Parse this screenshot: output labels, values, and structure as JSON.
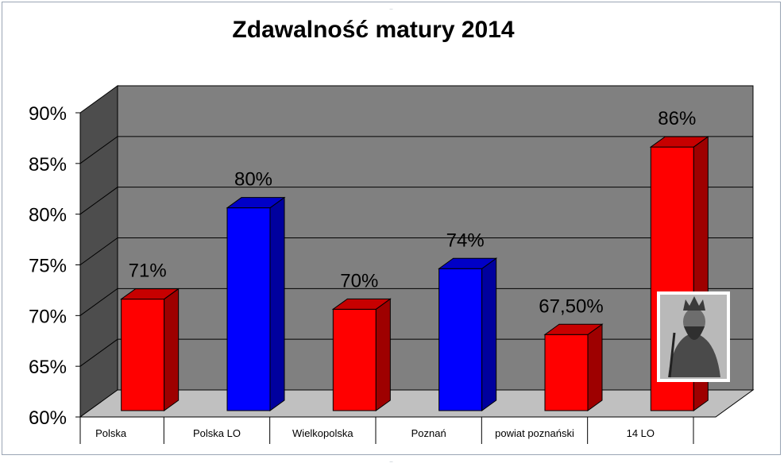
{
  "chart_data": {
    "type": "bar",
    "title": "Zdawalność matury 2014",
    "categories": [
      "Polska",
      "Polska LO",
      "Wielkopolska",
      "Poznań",
      "powiat poznański",
      "14 LO"
    ],
    "values": [
      71,
      80,
      70,
      74,
      67.5,
      86
    ],
    "data_labels": [
      "71%",
      "80%",
      "70%",
      "74%",
      "67,50%",
      "86%"
    ],
    "bar_colors": [
      "#ff0000",
      "#0000ff",
      "#ff0000",
      "#0000ff",
      "#ff0000",
      "#ff0000"
    ],
    "ylim": [
      60,
      90
    ],
    "yticks": [
      60,
      65,
      70,
      75,
      80,
      85,
      90
    ],
    "ytick_labels": [
      "60%",
      "65%",
      "70%",
      "75%",
      "80%",
      "85%",
      "90%"
    ],
    "grid": true,
    "legend": "none",
    "style": "3d-column",
    "annotation_image": "portrait-engraving"
  }
}
